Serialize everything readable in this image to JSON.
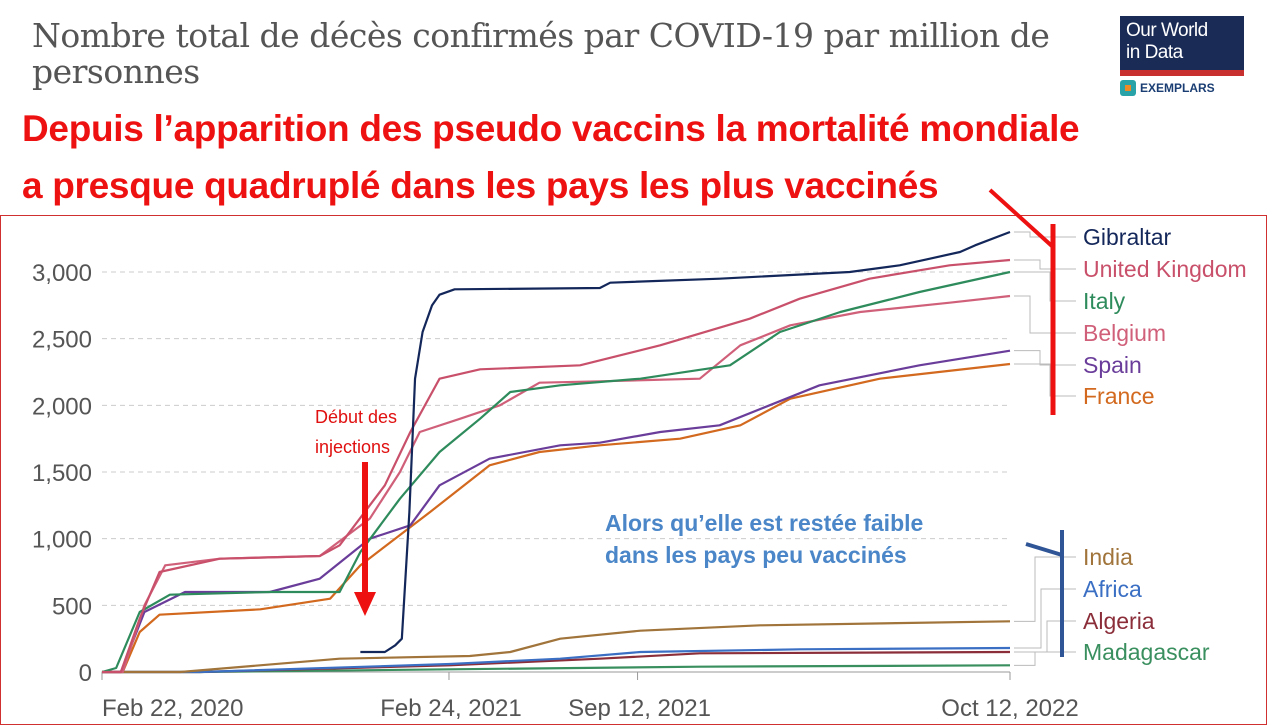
{
  "title": "Nombre total de décès confirmés par COVID-19 par million de personnes",
  "logo": {
    "line1": "Our World",
    "line2": "in Data",
    "sub": "EXEMPLARS"
  },
  "headline": {
    "line1": "Depuis l’apparition des pseudo vaccins la mortalité mondiale",
    "line2": "a presque quadruplé dans les pays les plus vaccinés"
  },
  "annotations": {
    "injections": "Début des injections",
    "low": {
      "line1": "Alors qu’elle est restée faible",
      "line2": "dans les pays peu vaccinés"
    }
  },
  "colors": {
    "red": "#ee1111",
    "blue": "#2f5597"
  },
  "chart_data": {
    "type": "line",
    "title": "Nombre total de décès confirmés par COVID-19 par million de personnes",
    "x_unit": "days since Feb 22, 2020",
    "xlim": [
      0,
      963
    ],
    "ylim": [
      0,
      3300
    ],
    "yticks": [
      0,
      500,
      1000,
      1500,
      2000,
      2500,
      3000
    ],
    "ytick_labels": [
      "0",
      "500",
      "1,000",
      "1,500",
      "2,000",
      "2,500",
      "3,000"
    ],
    "xticks": [
      0,
      368,
      568,
      963
    ],
    "xtick_labels": [
      "Feb 22, 2020",
      "Feb 24, 2021",
      "Sep 12, 2021",
      "Oct 12, 2022"
    ],
    "grid": true,
    "legend": "right",
    "series": [
      {
        "name": "Gibraltar",
        "color": "#14275a",
        "points": [
          [
            274,
            150
          ],
          [
            300,
            150
          ],
          [
            311,
            200
          ],
          [
            318,
            250
          ],
          [
            326,
            1200
          ],
          [
            332,
            2200
          ],
          [
            340,
            2550
          ],
          [
            350,
            2750
          ],
          [
            358,
            2830
          ],
          [
            374,
            2870
          ],
          [
            528,
            2880
          ],
          [
            539,
            2920
          ],
          [
            655,
            2950
          ],
          [
            793,
            3000
          ],
          [
            846,
            3050
          ],
          [
            878,
            3100
          ],
          [
            910,
            3150
          ],
          [
            926,
            3200
          ],
          [
            963,
            3300
          ]
        ]
      },
      {
        "name": "United Kingdom",
        "color": "#c9506a",
        "points": [
          [
            0,
            0
          ],
          [
            20,
            0
          ],
          [
            40,
            400
          ],
          [
            61,
            750
          ],
          [
            125,
            850
          ],
          [
            231,
            870
          ],
          [
            252,
            950
          ],
          [
            300,
            1400
          ],
          [
            327,
            1800
          ],
          [
            358,
            2200
          ],
          [
            401,
            2270
          ],
          [
            507,
            2300
          ],
          [
            592,
            2450
          ],
          [
            687,
            2650
          ],
          [
            740,
            2800
          ],
          [
            814,
            2950
          ],
          [
            899,
            3050
          ],
          [
            963,
            3090
          ]
        ]
      },
      {
        "name": "Italy",
        "color": "#2e8b5c",
        "points": [
          [
            0,
            0
          ],
          [
            15,
            30
          ],
          [
            40,
            450
          ],
          [
            72,
            580
          ],
          [
            178,
            600
          ],
          [
            252,
            600
          ],
          [
            274,
            900
          ],
          [
            316,
            1300
          ],
          [
            358,
            1650
          ],
          [
            401,
            1900
          ],
          [
            433,
            2100
          ],
          [
            486,
            2150
          ],
          [
            571,
            2200
          ],
          [
            666,
            2300
          ],
          [
            719,
            2550
          ],
          [
            783,
            2700
          ],
          [
            867,
            2850
          ],
          [
            963,
            3000
          ]
        ]
      },
      {
        "name": "Belgium",
        "color": "#d0607a",
        "points": [
          [
            0,
            0
          ],
          [
            22,
            0
          ],
          [
            45,
            500
          ],
          [
            67,
            800
          ],
          [
            125,
            850
          ],
          [
            231,
            870
          ],
          [
            284,
            1150
          ],
          [
            316,
            1500
          ],
          [
            337,
            1800
          ],
          [
            380,
            1900
          ],
          [
            422,
            2000
          ],
          [
            464,
            2170
          ],
          [
            528,
            2180
          ],
          [
            634,
            2200
          ],
          [
            677,
            2450
          ],
          [
            730,
            2600
          ],
          [
            804,
            2700
          ],
          [
            899,
            2770
          ],
          [
            963,
            2820
          ]
        ]
      },
      {
        "name": "Spain",
        "color": "#6a3d9a",
        "points": [
          [
            0,
            0
          ],
          [
            20,
            0
          ],
          [
            45,
            450
          ],
          [
            88,
            600
          ],
          [
            178,
            600
          ],
          [
            231,
            700
          ],
          [
            284,
            1000
          ],
          [
            327,
            1100
          ],
          [
            358,
            1400
          ],
          [
            411,
            1600
          ],
          [
            486,
            1700
          ],
          [
            528,
            1720
          ],
          [
            592,
            1800
          ],
          [
            655,
            1850
          ],
          [
            708,
            2000
          ],
          [
            761,
            2150
          ],
          [
            867,
            2300
          ],
          [
            963,
            2410
          ]
        ]
      },
      {
        "name": "France",
        "color": "#d2691e",
        "points": [
          [
            0,
            0
          ],
          [
            22,
            0
          ],
          [
            40,
            300
          ],
          [
            61,
            430
          ],
          [
            168,
            470
          ],
          [
            242,
            550
          ],
          [
            274,
            800
          ],
          [
            348,
            1200
          ],
          [
            411,
            1550
          ],
          [
            464,
            1650
          ],
          [
            528,
            1700
          ],
          [
            613,
            1750
          ],
          [
            677,
            1850
          ],
          [
            730,
            2050
          ],
          [
            825,
            2200
          ],
          [
            963,
            2310
          ]
        ]
      },
      {
        "name": "India",
        "color": "#a0743a",
        "points": [
          [
            0,
            0
          ],
          [
            83,
            0
          ],
          [
            252,
            100
          ],
          [
            390,
            120
          ],
          [
            433,
            150
          ],
          [
            486,
            250
          ],
          [
            571,
            310
          ],
          [
            698,
            350
          ],
          [
            963,
            380
          ]
        ]
      },
      {
        "name": "Africa",
        "color": "#3a6fc4",
        "points": [
          [
            0,
            0
          ],
          [
            104,
            0
          ],
          [
            369,
            60
          ],
          [
            486,
            100
          ],
          [
            571,
            150
          ],
          [
            740,
            170
          ],
          [
            963,
            180
          ]
        ]
      },
      {
        "name": "Algeria",
        "color": "#8b2e3a",
        "points": [
          [
            0,
            0
          ],
          [
            104,
            0
          ],
          [
            369,
            50
          ],
          [
            528,
            100
          ],
          [
            634,
            140
          ],
          [
            963,
            150
          ]
        ]
      },
      {
        "name": "Madagascar",
        "color": "#3a8f5f",
        "points": [
          [
            0,
            0
          ],
          [
            104,
            0
          ],
          [
            369,
            20
          ],
          [
            634,
            40
          ],
          [
            963,
            50
          ]
        ]
      }
    ]
  }
}
